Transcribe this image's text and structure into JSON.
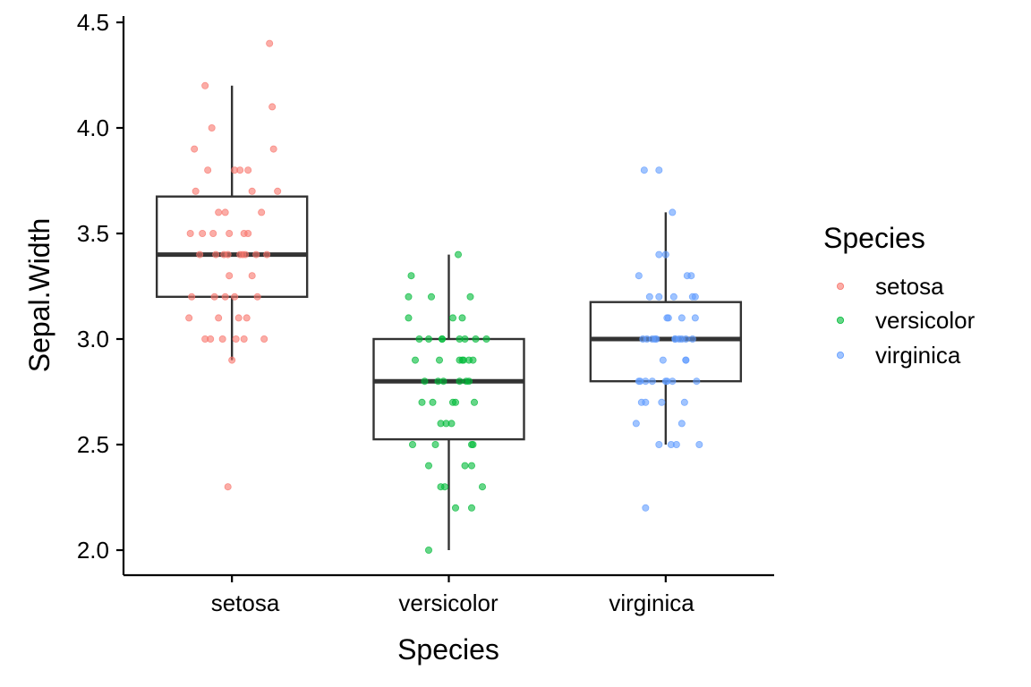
{
  "chart_data": {
    "type": "boxplot",
    "xlabel": "Species",
    "ylabel": "Sepal.Width",
    "categories": [
      "setosa",
      "versicolor",
      "virginica"
    ],
    "ylim": [
      1.9,
      4.52
    ],
    "y_ticks": [
      "2.0",
      "2.5",
      "3.0",
      "3.5",
      "4.0",
      "4.5"
    ],
    "grid": false,
    "legend": {
      "title": "Species",
      "placement": "right",
      "entries": [
        "setosa",
        "versicolor",
        "virginica"
      ]
    },
    "colors": {
      "setosa": "#F8766D",
      "versicolor": "#00BA38",
      "virginica": "#619CFF",
      "box": "#333333",
      "axis": "#000000"
    },
    "boxes": [
      {
        "name": "setosa",
        "whisker_low": 2.9,
        "q1": 3.2,
        "median": 3.4,
        "q3": 3.675,
        "whisker_high": 4.2
      },
      {
        "name": "versicolor",
        "whisker_low": 2.0,
        "q1": 2.525,
        "median": 2.8,
        "q3": 3.0,
        "whisker_high": 3.4
      },
      {
        "name": "virginica",
        "whisker_low": 2.5,
        "q1": 2.8,
        "median": 3.0,
        "q3": 3.175,
        "whisker_high": 3.6
      }
    ],
    "series": [
      {
        "name": "setosa",
        "values": [
          3.5,
          3.0,
          3.2,
          3.1,
          3.6,
          3.9,
          3.4,
          3.4,
          2.9,
          3.1,
          3.7,
          3.4,
          3.0,
          3.0,
          4.0,
          4.4,
          3.9,
          3.5,
          3.8,
          3.8,
          3.4,
          3.7,
          3.6,
          3.3,
          3.4,
          3.0,
          3.4,
          3.5,
          3.4,
          3.2,
          3.1,
          3.4,
          4.1,
          4.2,
          3.1,
          3.2,
          3.5,
          3.6,
          3.0,
          3.4,
          3.5,
          2.3,
          3.2,
          3.5,
          3.8,
          3.0,
          3.8,
          3.2,
          3.7,
          3.3
        ],
        "jitter": [
          -0.14,
          0.24,
          -0.3,
          0.05,
          0.22,
          -0.28,
          0.18,
          -0.06,
          0.0,
          -0.1,
          0.34,
          0.1,
          -0.2,
          0.03,
          -0.15,
          0.28,
          0.31,
          -0.02,
          0.12,
          -0.18,
          0.08,
          -0.27,
          -0.1,
          0.15,
          0.26,
          -0.16,
          -0.03,
          0.09,
          -0.24,
          -0.05,
          0.11,
          -0.12,
          0.3,
          -0.2,
          -0.32,
          0.02,
          -0.22,
          -0.05,
          -0.07,
          0.06,
          0.12,
          -0.03,
          0.19,
          -0.31,
          0.06,
          0.09,
          0.02,
          -0.13,
          0.15,
          -0.02
        ]
      },
      {
        "name": "versicolor",
        "values": [
          3.2,
          3.2,
          3.1,
          2.3,
          2.8,
          2.8,
          3.3,
          2.4,
          2.9,
          2.7,
          2.0,
          3.0,
          2.2,
          2.9,
          2.9,
          3.1,
          3.0,
          2.7,
          2.2,
          2.5,
          3.2,
          2.8,
          2.5,
          2.8,
          2.9,
          3.0,
          2.8,
          3.0,
          2.9,
          2.6,
          2.4,
          2.4,
          2.7,
          2.7,
          3.0,
          3.4,
          3.1,
          2.3,
          3.0,
          2.5,
          2.6,
          3.0,
          2.6,
          2.3,
          2.7,
          3.0,
          2.9,
          2.9,
          2.5,
          2.8
        ],
        "jitter": [
          -0.13,
          0.16,
          -0.3,
          0.25,
          -0.08,
          0.08,
          -0.28,
          0.12,
          0.18,
          -0.2,
          -0.15,
          0.2,
          0.05,
          0.11,
          -0.25,
          0.1,
          -0.05,
          0.03,
          0.17,
          -0.1,
          -0.3,
          0.15,
          0.17,
          -0.18,
          0.08,
          0.12,
          -0.04,
          -0.22,
          0.1,
          -0.06,
          -0.15,
          0.17,
          -0.12,
          0.19,
          -0.15,
          0.07,
          0.03,
          -0.03,
          0.28,
          -0.27,
          0.02,
          0.08,
          -0.02,
          -0.06,
          0.05,
          -0.05,
          -0.07,
          0.15,
          0.18,
          0.13
        ]
      },
      {
        "name": "virginica",
        "values": [
          3.3,
          2.7,
          3.0,
          2.9,
          3.0,
          3.0,
          2.5,
          2.9,
          2.5,
          3.6,
          3.2,
          2.7,
          3.0,
          2.5,
          2.8,
          3.2,
          3.0,
          3.8,
          2.6,
          2.2,
          3.2,
          2.8,
          2.8,
          2.7,
          3.3,
          3.2,
          2.8,
          3.0,
          2.8,
          3.0,
          2.8,
          3.8,
          2.8,
          2.8,
          2.6,
          3.0,
          3.4,
          3.1,
          3.0,
          3.1,
          3.1,
          3.1,
          2.7,
          3.2,
          3.3,
          3.0,
          2.5,
          3.0,
          3.4,
          2.9
        ],
        "jitter": [
          0.19,
          -0.18,
          0.1,
          -0.02,
          -0.17,
          0.15,
          0.04,
          0.15,
          -0.05,
          0.05,
          0.22,
          -0.15,
          -0.1,
          0.25,
          -0.19,
          -0.12,
          0.12,
          -0.16,
          0.12,
          -0.15,
          -0.05,
          0.05,
          0.23,
          -0.03,
          -0.2,
          0.06,
          0.01,
          -0.07,
          -0.15,
          0.2,
          -0.1,
          -0.05,
          -0.2,
          0.0,
          -0.22,
          0.07,
          -0.05,
          0.22,
          -0.14,
          0.01,
          0.02,
          0.12,
          0.14,
          0.2,
          0.16,
          0.07,
          0.08,
          -0.08,
          0.0,
          0.15
        ]
      }
    ]
  }
}
